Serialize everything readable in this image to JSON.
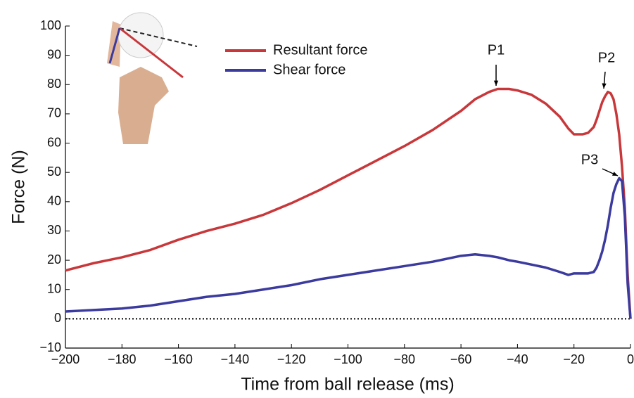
{
  "chart_data": {
    "type": "line",
    "x_label": "Time from ball release (ms)",
    "y_label": "Force (N)",
    "x": [
      -200,
      -190,
      -180,
      -170,
      -160,
      -150,
      -140,
      -130,
      -120,
      -110,
      -100,
      -90,
      -80,
      -70,
      -60,
      -55,
      -50,
      -47,
      -43,
      -40,
      -35,
      -30,
      -25,
      -22,
      -20,
      -17,
      -15,
      -13,
      -12,
      -11,
      -10,
      -9,
      -8,
      -7,
      -6,
      -5,
      -4,
      -3,
      -2,
      -1,
      0
    ],
    "series": [
      {
        "name": "Resultant force",
        "color": "#c8373a",
        "values": [
          16.5,
          19,
          21,
          23.5,
          27,
          30,
          32.5,
          35.5,
          39.5,
          44,
          49,
          54,
          59,
          64.5,
          71,
          75,
          77.5,
          78.5,
          78.5,
          78,
          76.5,
          73.5,
          69,
          65,
          63,
          63,
          63.5,
          65.5,
          68,
          71,
          74,
          76,
          77.5,
          77,
          75,
          70,
          63,
          52,
          38,
          15,
          0
        ]
      },
      {
        "name": "Shear force",
        "color": "#3b3a9e",
        "values": [
          2.5,
          3,
          3.5,
          4.5,
          6,
          7.5,
          8.5,
          10,
          11.5,
          13.5,
          15,
          16.5,
          18,
          19.5,
          21.5,
          22,
          21.5,
          21,
          20,
          19.5,
          18.5,
          17.5,
          16,
          15,
          15.5,
          15.5,
          15.5,
          16,
          17.5,
          20,
          23,
          27,
          32,
          38,
          43,
          46,
          48,
          47,
          35,
          12,
          0
        ]
      }
    ],
    "xlim": [
      -200,
      0
    ],
    "xticks": [
      {
        "value": -200,
        "label": "−200"
      },
      {
        "value": -180,
        "label": "−180"
      },
      {
        "value": -160,
        "label": "−160"
      },
      {
        "value": -140,
        "label": "−140"
      },
      {
        "value": -120,
        "label": "−120"
      },
      {
        "value": -100,
        "label": "−100"
      },
      {
        "value": -80,
        "label": "−80"
      },
      {
        "value": -60,
        "label": "−60"
      },
      {
        "value": -40,
        "label": "−40"
      },
      {
        "value": -20,
        "label": "−20"
      },
      0
    ],
    "ylim": [
      -10,
      100
    ],
    "yticks": [
      {
        "value": -10,
        "label": "−10"
      },
      0,
      10,
      20,
      30,
      40,
      50,
      60,
      70,
      80,
      90,
      100
    ],
    "annotations": [
      "P1",
      "P2",
      "P3"
    ]
  }
}
